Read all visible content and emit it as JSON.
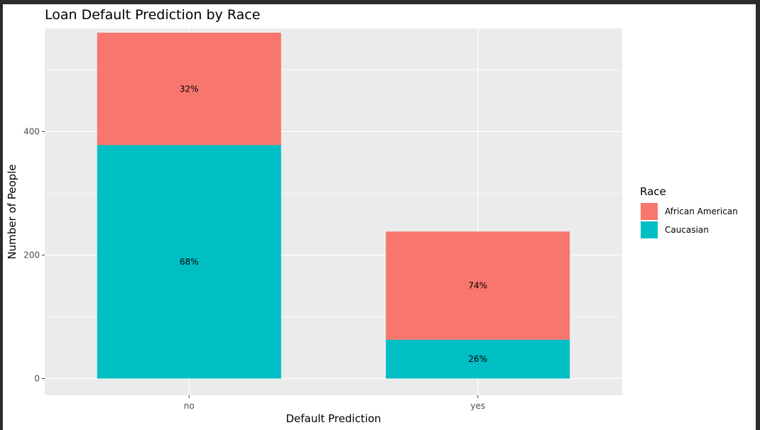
{
  "chart_data": {
    "type": "bar",
    "stacked": true,
    "title": "Loan Default Prediction by Race",
    "xlabel": "Default Prediction",
    "ylabel": "Number of People",
    "categories": [
      "no",
      "yes"
    ],
    "ylim": [
      0,
      560
    ],
    "yticks": [
      0,
      200,
      400
    ],
    "grid": true,
    "legend": {
      "title": "Race",
      "position": "right"
    },
    "series": [
      {
        "name": "Caucasian",
        "color": "#00BFC4",
        "values": [
          378,
          63
        ],
        "labels": [
          "68%",
          "26%"
        ]
      },
      {
        "name": "African American",
        "color": "#F8766D",
        "values": [
          182,
          175
        ],
        "labels": [
          "32%",
          "74%"
        ]
      }
    ]
  }
}
